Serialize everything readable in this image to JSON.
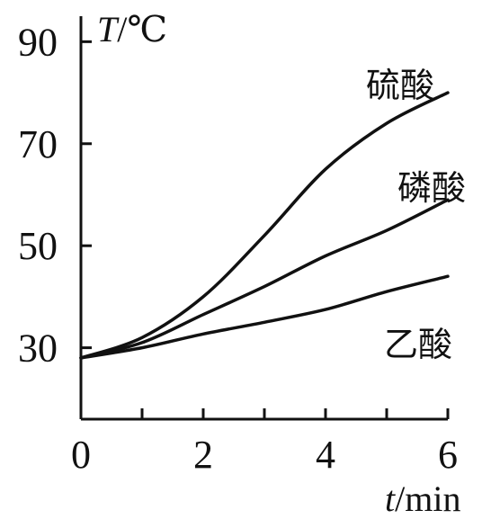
{
  "chart_data": {
    "type": "line",
    "xlabel": {
      "var": "t",
      "unit": "/min"
    },
    "ylabel": {
      "var": "T",
      "unit": "/℃"
    },
    "xlim": [
      0,
      6
    ],
    "ylim": [
      16,
      95
    ],
    "x_major_ticks": [
      0,
      2,
      4,
      6
    ],
    "x_minor_ticks": [
      1,
      3,
      5
    ],
    "y_ticks": [
      30,
      50,
      70,
      90
    ],
    "x_tick_labels": [
      "0",
      "2",
      "4",
      "6"
    ],
    "y_tick_labels": [
      "30",
      "50",
      "70",
      "90"
    ],
    "grid": false,
    "legend": "none",
    "series": [
      {
        "name": "硫酸",
        "x": [
          0,
          1,
          2,
          3,
          4,
          5,
          6
        ],
        "y": [
          28,
          32,
          40,
          52,
          65,
          74,
          80
        ]
      },
      {
        "name": "磷酸",
        "x": [
          0,
          1,
          2,
          3,
          4,
          5,
          6
        ],
        "y": [
          28,
          31,
          36.5,
          42,
          48,
          53,
          59
        ]
      },
      {
        "name": "乙酸",
        "x": [
          0,
          1,
          2,
          3,
          4,
          5,
          6
        ],
        "y": [
          28,
          30,
          32.7,
          35,
          37.5,
          41,
          44
        ]
      }
    ]
  }
}
